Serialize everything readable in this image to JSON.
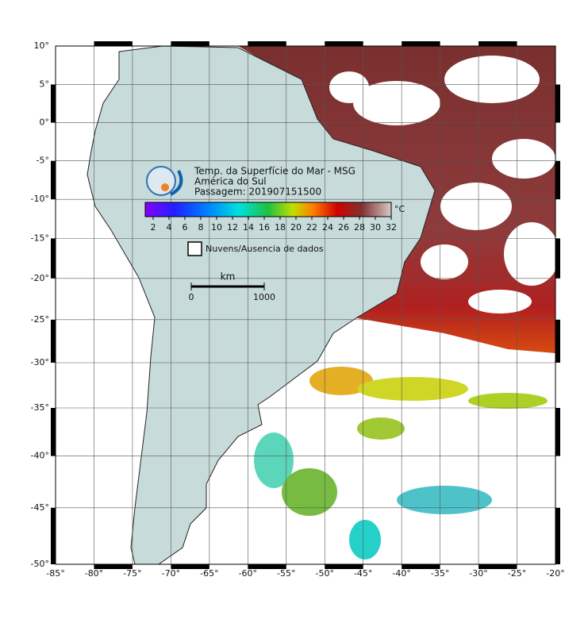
{
  "map": {
    "title_lines": [
      "Temp. da Superfície do Mar - MSG",
      "América do Sul",
      "Passagem: 201907151500"
    ],
    "lat_ticks": [
      {
        "value": 10,
        "label": "10°"
      },
      {
        "value": 5,
        "label": "5°"
      },
      {
        "value": 0,
        "label": "0°"
      },
      {
        "value": -5,
        "label": "-5°"
      },
      {
        "value": -10,
        "label": "-10°"
      },
      {
        "value": -15,
        "label": "-15°"
      },
      {
        "value": -20,
        "label": "-20°"
      },
      {
        "value": -25,
        "label": "-25°"
      },
      {
        "value": -30,
        "label": "-30°"
      },
      {
        "value": -35,
        "label": "-35°"
      },
      {
        "value": -40,
        "label": "-40°"
      },
      {
        "value": -45,
        "label": "-45°"
      },
      {
        "value": -50,
        "label": "-50°"
      }
    ],
    "lon_ticks": [
      {
        "value": -85,
        "label": "-85°"
      },
      {
        "value": -80,
        "label": "-80°"
      },
      {
        "value": -75,
        "label": "-75°"
      },
      {
        "value": -70,
        "label": "-70°"
      },
      {
        "value": -65,
        "label": "-65°"
      },
      {
        "value": -60,
        "label": "-60°"
      },
      {
        "value": -55,
        "label": "-55°"
      },
      {
        "value": -50,
        "label": "-50°"
      },
      {
        "value": -45,
        "label": "-45°"
      },
      {
        "value": -40,
        "label": "-40°"
      },
      {
        "value": -35,
        "label": "-35°"
      },
      {
        "value": -30,
        "label": "-30°"
      },
      {
        "value": -25,
        "label": "-25°"
      },
      {
        "value": -20,
        "label": "-20°"
      }
    ],
    "colorbar": {
      "unit": "°C",
      "range": [
        1,
        32
      ],
      "ticks": [
        2,
        4,
        6,
        8,
        10,
        12,
        14,
        16,
        18,
        20,
        22,
        24,
        26,
        28,
        30,
        32
      ]
    },
    "legend": "Nuvens/Ausencia de dados",
    "scale": {
      "unit": "km",
      "ticks": [
        0,
        1000
      ]
    }
  }
}
